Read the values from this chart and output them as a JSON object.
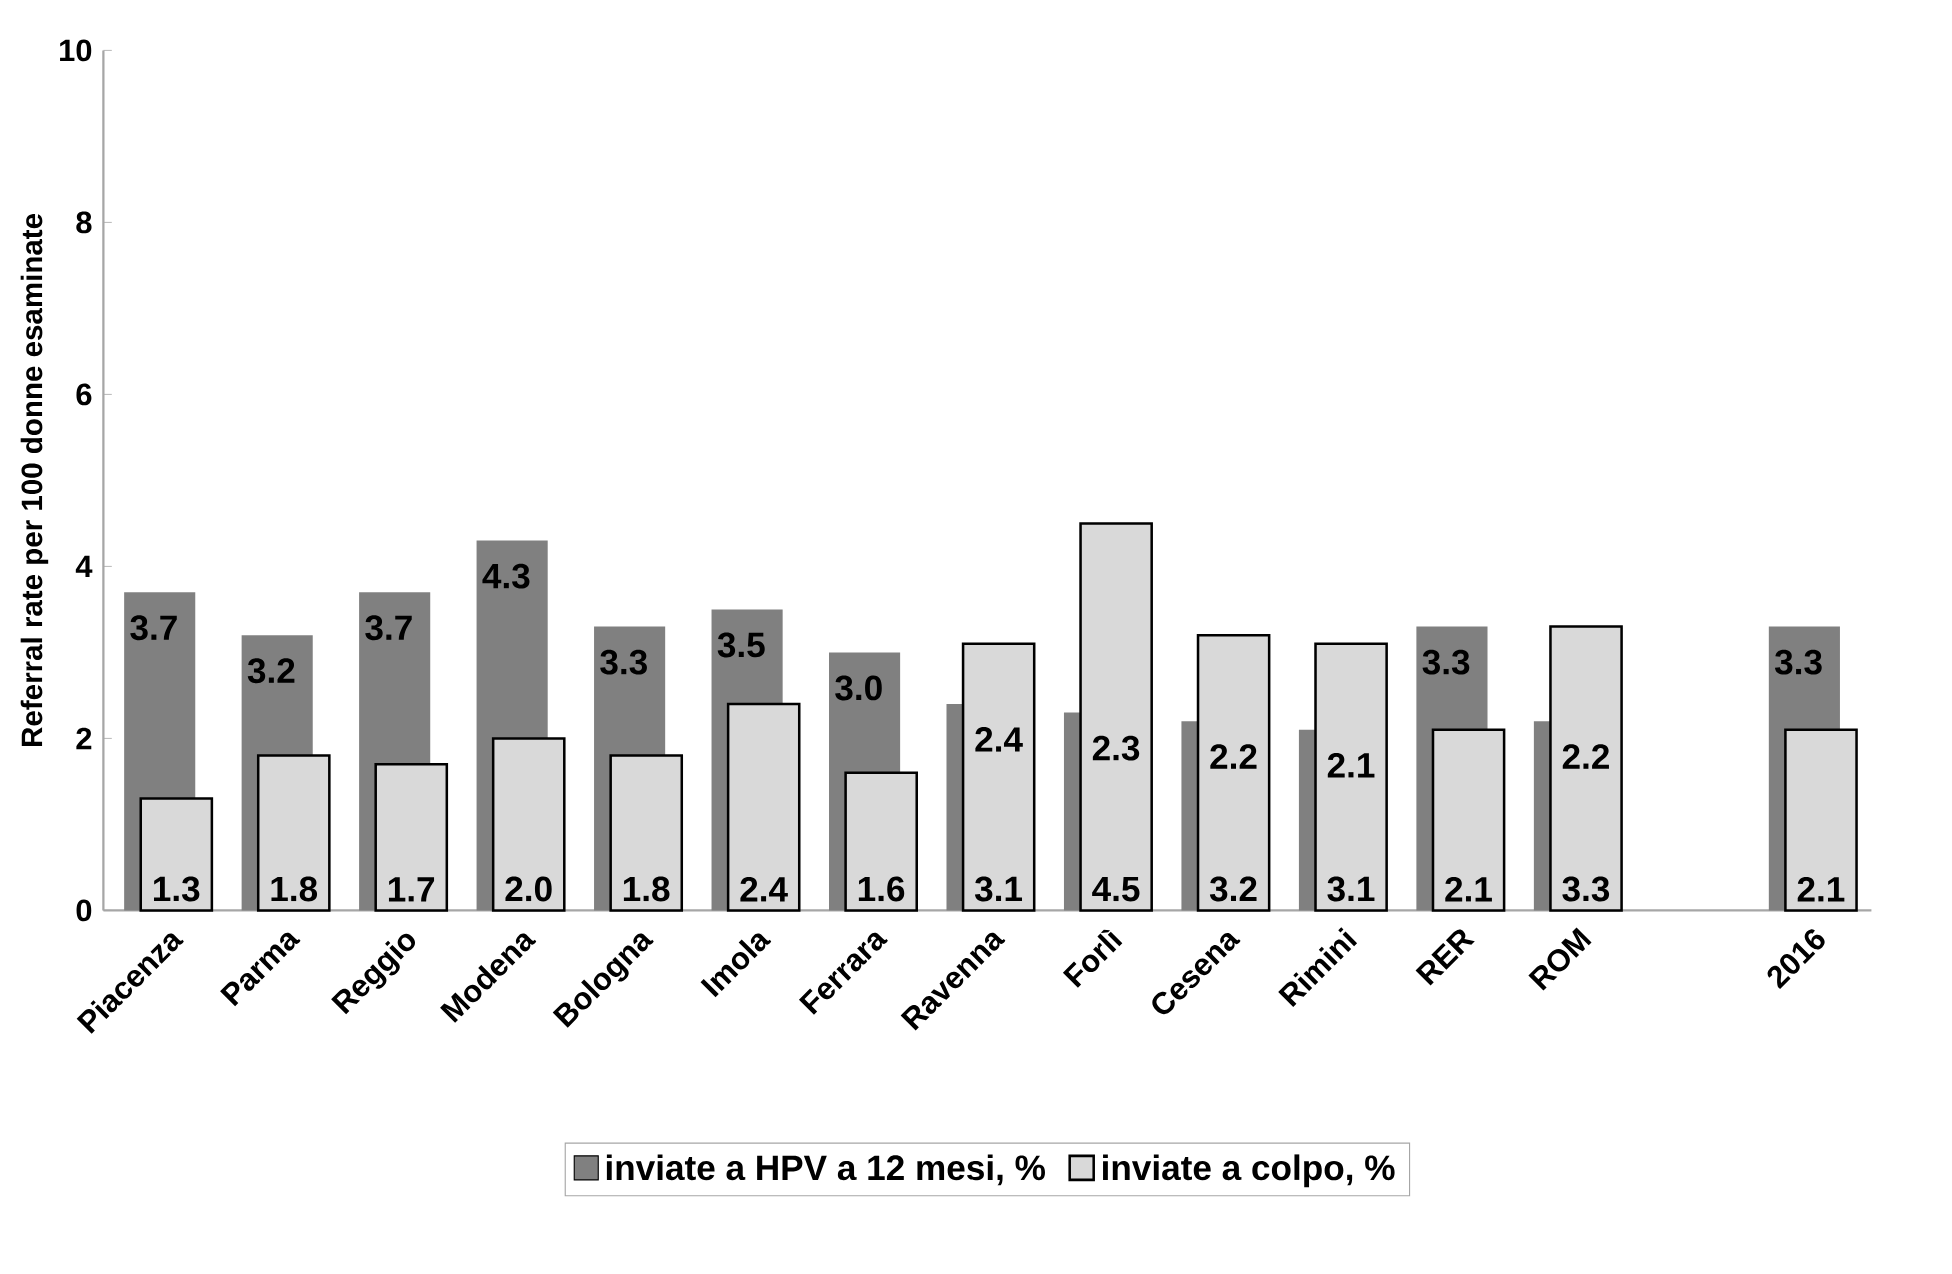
{
  "chart_data": {
    "type": "bar",
    "ylabel": "Referral rate per 100 donne esaminate",
    "categories": [
      "Piacenza",
      "Parma",
      "Reggio",
      "Modena",
      "Bologna",
      "Imola",
      "Ferrara",
      "Ravenna",
      "Forlì",
      "Cesena",
      "Rimini",
      "RER",
      "ROM",
      null,
      "2016"
    ],
    "series": [
      {
        "name": "inviate a HPV a 12 mesi, %",
        "color": "#808080",
        "values": [
          3.7,
          3.2,
          3.7,
          4.3,
          3.3,
          3.5,
          3.0,
          2.4,
          2.3,
          2.2,
          2.1,
          3.3,
          2.2,
          null,
          3.3
        ],
        "value_labels": [
          "3.7",
          "3.2",
          "3.7",
          "4.3",
          "3.3",
          "3.5",
          "3.0",
          "2.4",
          "2.3",
          "2.2",
          "2.1",
          "3.3",
          "2.2",
          null,
          "3.3"
        ]
      },
      {
        "name": "inviate a colpo, %",
        "color": "#d9d9d9",
        "values": [
          1.3,
          1.8,
          1.7,
          2.0,
          1.8,
          2.4,
          1.6,
          3.1,
          4.5,
          3.2,
          3.1,
          2.1,
          3.3,
          null,
          2.1
        ],
        "value_labels": [
          "1.3",
          "1.8",
          "1.7",
          "2.0",
          "1.8",
          "2.4",
          "1.6",
          "3.1",
          "4.5",
          "3.2",
          "3.1",
          "2.1",
          "3.3",
          null,
          "2.1"
        ]
      }
    ],
    "ylim": [
      0,
      10
    ],
    "yticks": [
      0,
      2,
      4,
      6,
      8,
      10
    ],
    "grid": false,
    "legend": "bottom"
  }
}
